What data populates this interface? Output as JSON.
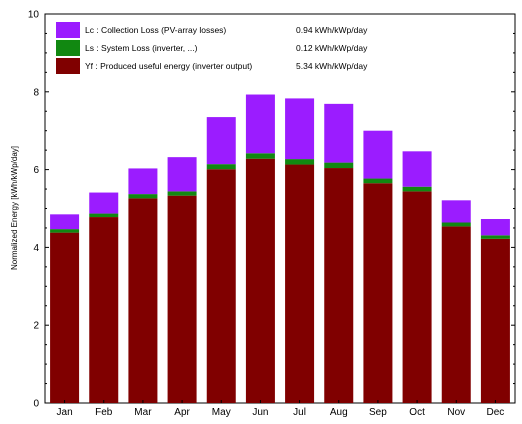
{
  "chart_data": {
    "type": "bar",
    "stacked": true,
    "ylabel": "Normalized Energy  [kWh/kWp/day]",
    "ylim": [
      0,
      10
    ],
    "yticks": [
      0,
      2,
      4,
      6,
      8,
      10
    ],
    "categories": [
      "Jan",
      "Feb",
      "Mar",
      "Apr",
      "May",
      "Jun",
      "Jul",
      "Aug",
      "Sep",
      "Oct",
      "Nov",
      "Dec"
    ],
    "series": [
      {
        "name": "Yf : Produced useful energy  (inverter output)",
        "value_label": "5.34 kWh/kWp/day",
        "color": "#800000",
        "values": [
          4.38,
          4.78,
          5.26,
          5.33,
          6.01,
          6.28,
          6.13,
          6.04,
          5.65,
          5.44,
          4.54,
          4.22
        ]
      },
      {
        "name": "Ls : System Loss  (inverter, ...)",
        "value_label": "0.12 kWh/kWp/day",
        "color": "#118811",
        "values": [
          0.09,
          0.09,
          0.11,
          0.11,
          0.13,
          0.14,
          0.14,
          0.14,
          0.12,
          0.12,
          0.1,
          0.09
        ]
      },
      {
        "name": "Lc : Collection Loss (PV-array losses)",
        "value_label": "0.94 kWh/kWp/day",
        "color": "#9b1cff",
        "values": [
          0.38,
          0.54,
          0.66,
          0.88,
          1.21,
          1.51,
          1.56,
          1.51,
          1.23,
          0.91,
          0.57,
          0.42
        ]
      }
    ],
    "legend_position": "top-left",
    "grid": false
  }
}
